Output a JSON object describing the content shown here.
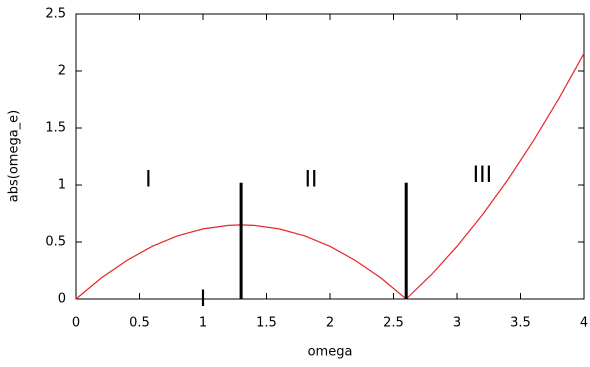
{
  "chart_data": {
    "type": "line",
    "xlabel": "omega",
    "ylabel": "abs(omega_e)",
    "x": [
      0,
      0.2,
      0.4,
      0.6,
      0.8,
      1.0,
      1.2,
      1.3,
      1.4,
      1.6,
      1.8,
      2.0,
      2.2,
      2.4,
      2.6,
      2.8,
      3.0,
      3.2,
      3.4,
      3.6,
      3.8,
      4.0
    ],
    "series": [
      {
        "color": "#e8262a",
        "values": [
          0,
          0.185,
          0.338,
          0.462,
          0.554,
          0.615,
          0.646,
          0.65,
          0.646,
          0.615,
          0.554,
          0.462,
          0.338,
          0.185,
          0,
          0.215,
          0.462,
          0.738,
          1.046,
          1.385,
          1.754,
          2.154
        ]
      }
    ],
    "vlines": [
      {
        "x": 1.3,
        "ymax": 1.02,
        "color": "#000000"
      },
      {
        "x": 2.6,
        "ymax": 1.02,
        "color": "#000000"
      }
    ],
    "annotations": [
      {
        "text": "I",
        "x": 0.57,
        "y": 1.04
      },
      {
        "text": "II",
        "x": 1.85,
        "y": 1.04
      },
      {
        "text": "III",
        "x": 3.2,
        "y": 1.08
      },
      {
        "text": "I",
        "x": 1.0,
        "y": -0.01
      }
    ],
    "xlim": [
      0,
      4
    ],
    "xticks": [
      0,
      0.5,
      1,
      1.5,
      2,
      2.5,
      3,
      3.5,
      4
    ],
    "ylim": [
      0,
      2.5
    ],
    "yticks": [
      0,
      0.5,
      1,
      1.5,
      2,
      2.5
    ]
  }
}
